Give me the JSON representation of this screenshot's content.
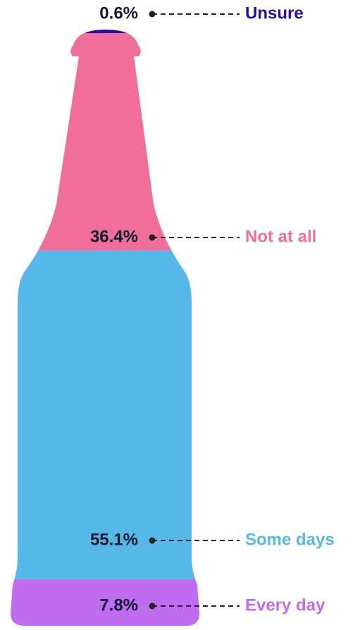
{
  "chart_data": {
    "type": "bottle",
    "categories": [
      "Unsure",
      "Not at all",
      "Some days",
      "Every day"
    ],
    "values": [
      0.6,
      36.4,
      55.1,
      7.8
    ],
    "value_labels": [
      "0.6%",
      "36.4%",
      "55.1%",
      "7.8%"
    ],
    "colors": [
      "#2e0a9e",
      "#ef6f9a",
      "#56b8e6",
      "#c06cf0"
    ]
  }
}
